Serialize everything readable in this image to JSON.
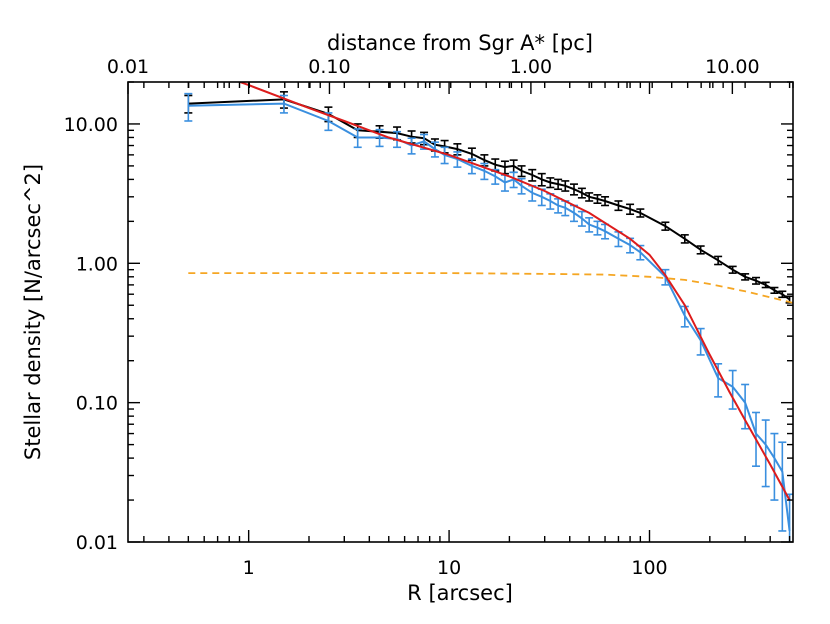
{
  "chart_data": {
    "type": "line",
    "xlabel": "R [arcsec]",
    "ylabel": "Stellar density [N/arcsec^2]",
    "top_axis_label": "distance from Sgr A* [pc]",
    "x_scale": "log",
    "y_scale": "log",
    "xlim": [
      0.25,
      520
    ],
    "ylim": [
      0.01,
      20
    ],
    "top_xlim": [
      0.01,
      20
    ],
    "x_ticks": [
      1,
      10,
      100
    ],
    "x_tick_labels": [
      "1",
      "10",
      "100"
    ],
    "y_ticks": [
      0.01,
      0.1,
      1,
      10
    ],
    "y_tick_labels": [
      "0.01",
      "0.10",
      "1.00",
      "10.00"
    ],
    "top_ticks": [
      0.01,
      0.1,
      1,
      10
    ],
    "top_tick_labels": [
      "0.01",
      "0.10",
      "1.00",
      "10.00"
    ],
    "grid": false,
    "legend": "none",
    "series": [
      {
        "color": "#000000",
        "style": "solid-errorbars",
        "points": [
          [
            0.5,
            14.0,
            2.0
          ],
          [
            1.5,
            15.0,
            2.0
          ],
          [
            2.5,
            11.8,
            1.4
          ],
          [
            3.5,
            9.0,
            1.0
          ],
          [
            4.5,
            8.8,
            0.9
          ],
          [
            5.5,
            8.6,
            0.9
          ],
          [
            6.5,
            8.1,
            0.8
          ],
          [
            7.5,
            7.9,
            0.8
          ],
          [
            8.5,
            7.1,
            0.7
          ],
          [
            9.5,
            6.9,
            0.7
          ],
          [
            11,
            6.6,
            0.6
          ],
          [
            13,
            6.1,
            0.6
          ],
          [
            15,
            5.5,
            0.5
          ],
          [
            17,
            5.1,
            0.5
          ],
          [
            19,
            4.9,
            0.5
          ],
          [
            21,
            5.0,
            0.5
          ],
          [
            23,
            4.6,
            0.4
          ],
          [
            26,
            4.3,
            0.4
          ],
          [
            29,
            4.0,
            0.4
          ],
          [
            32,
            3.8,
            0.3
          ],
          [
            35,
            3.7,
            0.3
          ],
          [
            38,
            3.6,
            0.3
          ],
          [
            42,
            3.4,
            0.3
          ],
          [
            46,
            3.2,
            0.25
          ],
          [
            50,
            3.0,
            0.2
          ],
          [
            55,
            2.9,
            0.2
          ],
          [
            60,
            2.8,
            0.2
          ],
          [
            70,
            2.6,
            0.2
          ],
          [
            80,
            2.45,
            0.2
          ],
          [
            90,
            2.3,
            0.15
          ],
          [
            120,
            1.85,
            0.12
          ],
          [
            150,
            1.5,
            0.1
          ],
          [
            180,
            1.25,
            0.08
          ],
          [
            220,
            1.05,
            0.07
          ],
          [
            260,
            0.9,
            0.05
          ],
          [
            300,
            0.8,
            0.04
          ],
          [
            340,
            0.75,
            0.04
          ],
          [
            380,
            0.7,
            0.03
          ],
          [
            420,
            0.64,
            0.03
          ],
          [
            460,
            0.6,
            0.03
          ],
          [
            500,
            0.55,
            0.03
          ]
        ]
      },
      {
        "color": "#3a8fdf",
        "style": "solid-errorbars",
        "points": [
          [
            0.5,
            13.5,
            3.0
          ],
          [
            1.5,
            14.0,
            2.0
          ],
          [
            2.5,
            10.5,
            1.5
          ],
          [
            3.5,
            8.0,
            1.2
          ],
          [
            4.5,
            8.0,
            1.1
          ],
          [
            5.5,
            7.8,
            1.0
          ],
          [
            6.5,
            7.0,
            0.9
          ],
          [
            7.5,
            7.5,
            0.9
          ],
          [
            8.5,
            6.6,
            0.8
          ],
          [
            9.5,
            6.0,
            0.8
          ],
          [
            11,
            5.6,
            0.7
          ],
          [
            13,
            5.0,
            0.6
          ],
          [
            15,
            4.6,
            0.6
          ],
          [
            17,
            4.2,
            0.5
          ],
          [
            19,
            3.8,
            0.5
          ],
          [
            21,
            4.0,
            0.5
          ],
          [
            23,
            3.6,
            0.45
          ],
          [
            26,
            3.2,
            0.4
          ],
          [
            29,
            3.0,
            0.4
          ],
          [
            32,
            2.8,
            0.35
          ],
          [
            35,
            2.6,
            0.3
          ],
          [
            38,
            2.5,
            0.3
          ],
          [
            42,
            2.3,
            0.3
          ],
          [
            46,
            2.1,
            0.25
          ],
          [
            50,
            1.9,
            0.22
          ],
          [
            55,
            1.8,
            0.2
          ],
          [
            60,
            1.7,
            0.2
          ],
          [
            70,
            1.5,
            0.18
          ],
          [
            80,
            1.35,
            0.16
          ],
          [
            90,
            1.2,
            0.14
          ],
          [
            120,
            0.8,
            0.1
          ],
          [
            150,
            0.42,
            0.07
          ],
          [
            180,
            0.28,
            0.06
          ],
          [
            220,
            0.15,
            0.04
          ],
          [
            260,
            0.13,
            0.04
          ],
          [
            300,
            0.1,
            0.035
          ],
          [
            340,
            0.06,
            0.025
          ],
          [
            380,
            0.05,
            0.025
          ],
          [
            420,
            0.04,
            0.02
          ],
          [
            460,
            0.032,
            0.02
          ],
          [
            500,
            0.012,
            0.01
          ]
        ]
      },
      {
        "color": "#dd1c1c",
        "style": "solid",
        "points": [
          [
            0.5,
            27
          ],
          [
            1.0,
            19
          ],
          [
            2.0,
            13
          ],
          [
            3.0,
            10.5
          ],
          [
            5.0,
            8.0
          ],
          [
            10,
            6.0
          ],
          [
            20,
            4.2
          ],
          [
            30,
            3.3
          ],
          [
            50,
            2.3
          ],
          [
            80,
            1.5
          ],
          [
            100,
            1.15
          ],
          [
            120,
            0.82
          ],
          [
            150,
            0.5
          ],
          [
            200,
            0.22
          ],
          [
            250,
            0.12
          ],
          [
            300,
            0.075
          ],
          [
            400,
            0.036
          ],
          [
            500,
            0.02
          ]
        ]
      },
      {
        "color": "#f5a623",
        "style": "dashed",
        "points": [
          [
            0.5,
            0.85
          ],
          [
            2,
            0.85
          ],
          [
            10,
            0.85
          ],
          [
            30,
            0.84
          ],
          [
            60,
            0.83
          ],
          [
            100,
            0.8
          ],
          [
            150,
            0.76
          ],
          [
            200,
            0.71
          ],
          [
            300,
            0.63
          ],
          [
            400,
            0.57
          ],
          [
            520,
            0.52
          ]
        ]
      }
    ]
  }
}
